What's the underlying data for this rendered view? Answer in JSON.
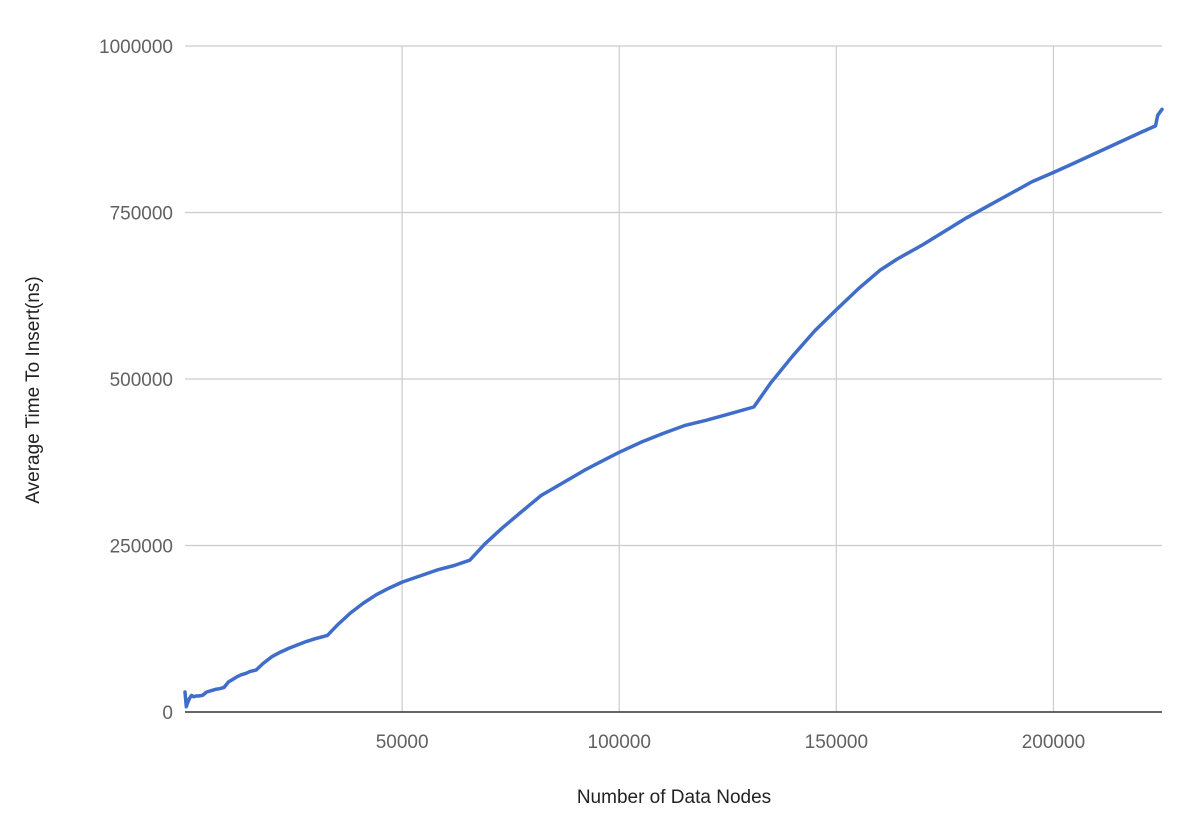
{
  "chart_data": {
    "type": "line",
    "title": "",
    "xlabel": "Number of Data Nodes",
    "ylabel": "Average Time To Insert(ns)",
    "xlim": [
      0,
      225000
    ],
    "ylim": [
      0,
      1000000
    ],
    "x_ticks": [
      50000,
      100000,
      150000,
      200000
    ],
    "x_tick_labels": [
      "50000",
      "100000",
      "150000",
      "200000"
    ],
    "y_ticks": [
      0,
      250000,
      500000,
      750000,
      1000000
    ],
    "y_tick_labels": [
      "0",
      "250000",
      "500000",
      "750000",
      "1000000"
    ],
    "grid": true,
    "legend": "none",
    "colors": {
      "series": "#3f6dc9",
      "grid": "#cccccc",
      "baseline": "#333333"
    },
    "series": [
      {
        "x": [
          0,
          300,
          500,
          1000,
          1500,
          2000,
          2500,
          3000,
          4000,
          5000,
          6000,
          7000,
          8000,
          9000,
          10000,
          11000,
          12000,
          13000,
          14000,
          15000,
          16400,
          18000,
          20000,
          22000,
          24000,
          26000,
          28000,
          30000,
          32800,
          35000,
          38000,
          41000,
          44000,
          47000,
          50000,
          54000,
          58000,
          62000,
          65600,
          69000,
          73000,
          77000,
          82000,
          87000,
          92000,
          97000,
          100000,
          105000,
          110000,
          115000,
          120000,
          125000,
          131000,
          135000,
          140000,
          145000,
          150000,
          155000,
          160000,
          164000,
          170000,
          175000,
          180000,
          185000,
          190000,
          195000,
          200000,
          205000,
          210000,
          215000,
          220000,
          223500,
          224000,
          225000
        ],
        "y": [
          30000,
          8000,
          12000,
          20000,
          25000,
          23000,
          24000,
          24000,
          25000,
          30000,
          32000,
          34000,
          35000,
          37000,
          45000,
          49000,
          53000,
          56000,
          58000,
          61000,
          63000,
          73000,
          83000,
          90000,
          96000,
          101000,
          106000,
          110000,
          115000,
          130000,
          148000,
          163000,
          176000,
          186000,
          195000,
          204000,
          213000,
          220000,
          228000,
          252000,
          276000,
          298000,
          325000,
          344000,
          363000,
          380000,
          390000,
          405000,
          418000,
          430000,
          438000,
          447000,
          458000,
          495000,
          535000,
          572000,
          604000,
          635000,
          663000,
          680000,
          702000,
          722000,
          742000,
          760000,
          778000,
          796000,
          810000,
          825000,
          840000,
          855000,
          870000,
          880000,
          896000,
          905000
        ]
      }
    ]
  }
}
